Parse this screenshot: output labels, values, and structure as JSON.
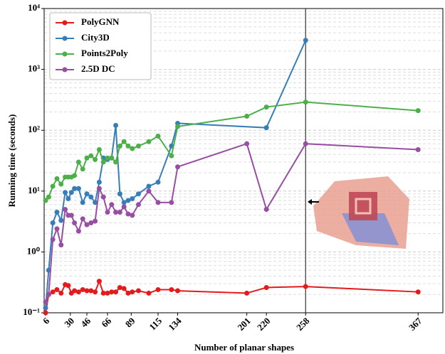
{
  "chart_data": {
    "type": "line",
    "xlabel": "Number of planar shapes",
    "ylabel": "Running time (seconds)",
    "x": [
      6,
      9,
      13,
      17,
      21,
      25,
      28,
      31,
      34,
      38,
      42,
      46,
      50,
      54,
      58,
      62,
      66,
      70,
      74,
      78,
      82,
      86,
      90,
      96,
      106,
      115,
      128,
      134,
      201,
      220,
      258,
      367
    ],
    "xlim": [
      4.6,
      391
    ],
    "xticks": [
      6,
      30,
      46,
      66,
      89,
      115,
      134,
      201,
      220,
      258,
      367
    ],
    "ylim": [
      0.1,
      10000
    ],
    "log_y": true,
    "yticks": [
      {
        "value": 0.1,
        "label": "10⁻¹"
      },
      {
        "value": 1,
        "label": "10⁰"
      },
      {
        "value": 10,
        "label": "10¹"
      },
      {
        "value": 100,
        "label": "10²"
      },
      {
        "value": 1000,
        "label": "10³"
      },
      {
        "value": 10000,
        "label": "10⁴"
      }
    ],
    "grid": true,
    "legend": "upper left",
    "vline": 258,
    "series": [
      {
        "name": "PolyGNN",
        "color": "#e41a1c",
        "values": [
          0.1,
          0.2,
          0.22,
          0.24,
          0.21,
          0.29,
          0.28,
          0.21,
          0.23,
          0.22,
          0.24,
          0.23,
          0.23,
          0.22,
          0.33,
          0.21,
          0.21,
          0.22,
          0.22,
          0.26,
          0.25,
          0.21,
          0.22,
          0.23,
          0.21,
          0.24,
          0.24,
          0.23,
          0.21,
          0.26,
          0.27,
          0.22
        ]
      },
      {
        "name": "City3D",
        "color": "#377eb8",
        "x": [
          6,
          9,
          13,
          17,
          21,
          25,
          28,
          31,
          34,
          38,
          42,
          46,
          50,
          54,
          58,
          62,
          66,
          70,
          74,
          78,
          82,
          86,
          90,
          96,
          106,
          115,
          128,
          134,
          220,
          258
        ],
        "values": [
          0.12,
          0.5,
          3,
          4.5,
          3.3,
          9.5,
          7.5,
          9.5,
          11,
          11,
          6.5,
          9,
          8,
          6.5,
          14,
          35,
          33,
          35,
          120,
          9,
          6.5,
          7,
          7.5,
          9,
          12,
          14,
          55,
          130,
          110,
          3000
        ]
      },
      {
        "name": "Points2Poly",
        "color": "#4daf4a",
        "values": [
          7,
          8,
          12,
          16,
          13,
          17,
          17,
          17,
          18,
          30,
          23,
          35,
          38,
          33,
          48,
          30,
          35,
          35,
          30,
          55,
          65,
          55,
          50,
          55,
          65,
          80,
          38,
          115,
          170,
          240,
          290,
          210
        ]
      },
      {
        "name": "2.5D DC",
        "color": "#984ea3",
        "values": [
          0.15,
          0.2,
          1.6,
          2.4,
          1.3,
          5,
          4,
          4,
          3,
          2.2,
          3.5,
          2.8,
          3,
          3.2,
          11,
          8,
          4.5,
          6,
          4.5,
          4.5,
          5.5,
          4.2,
          4,
          6,
          10,
          6.5,
          6.5,
          25,
          60,
          5,
          60,
          48
        ]
      }
    ]
  }
}
